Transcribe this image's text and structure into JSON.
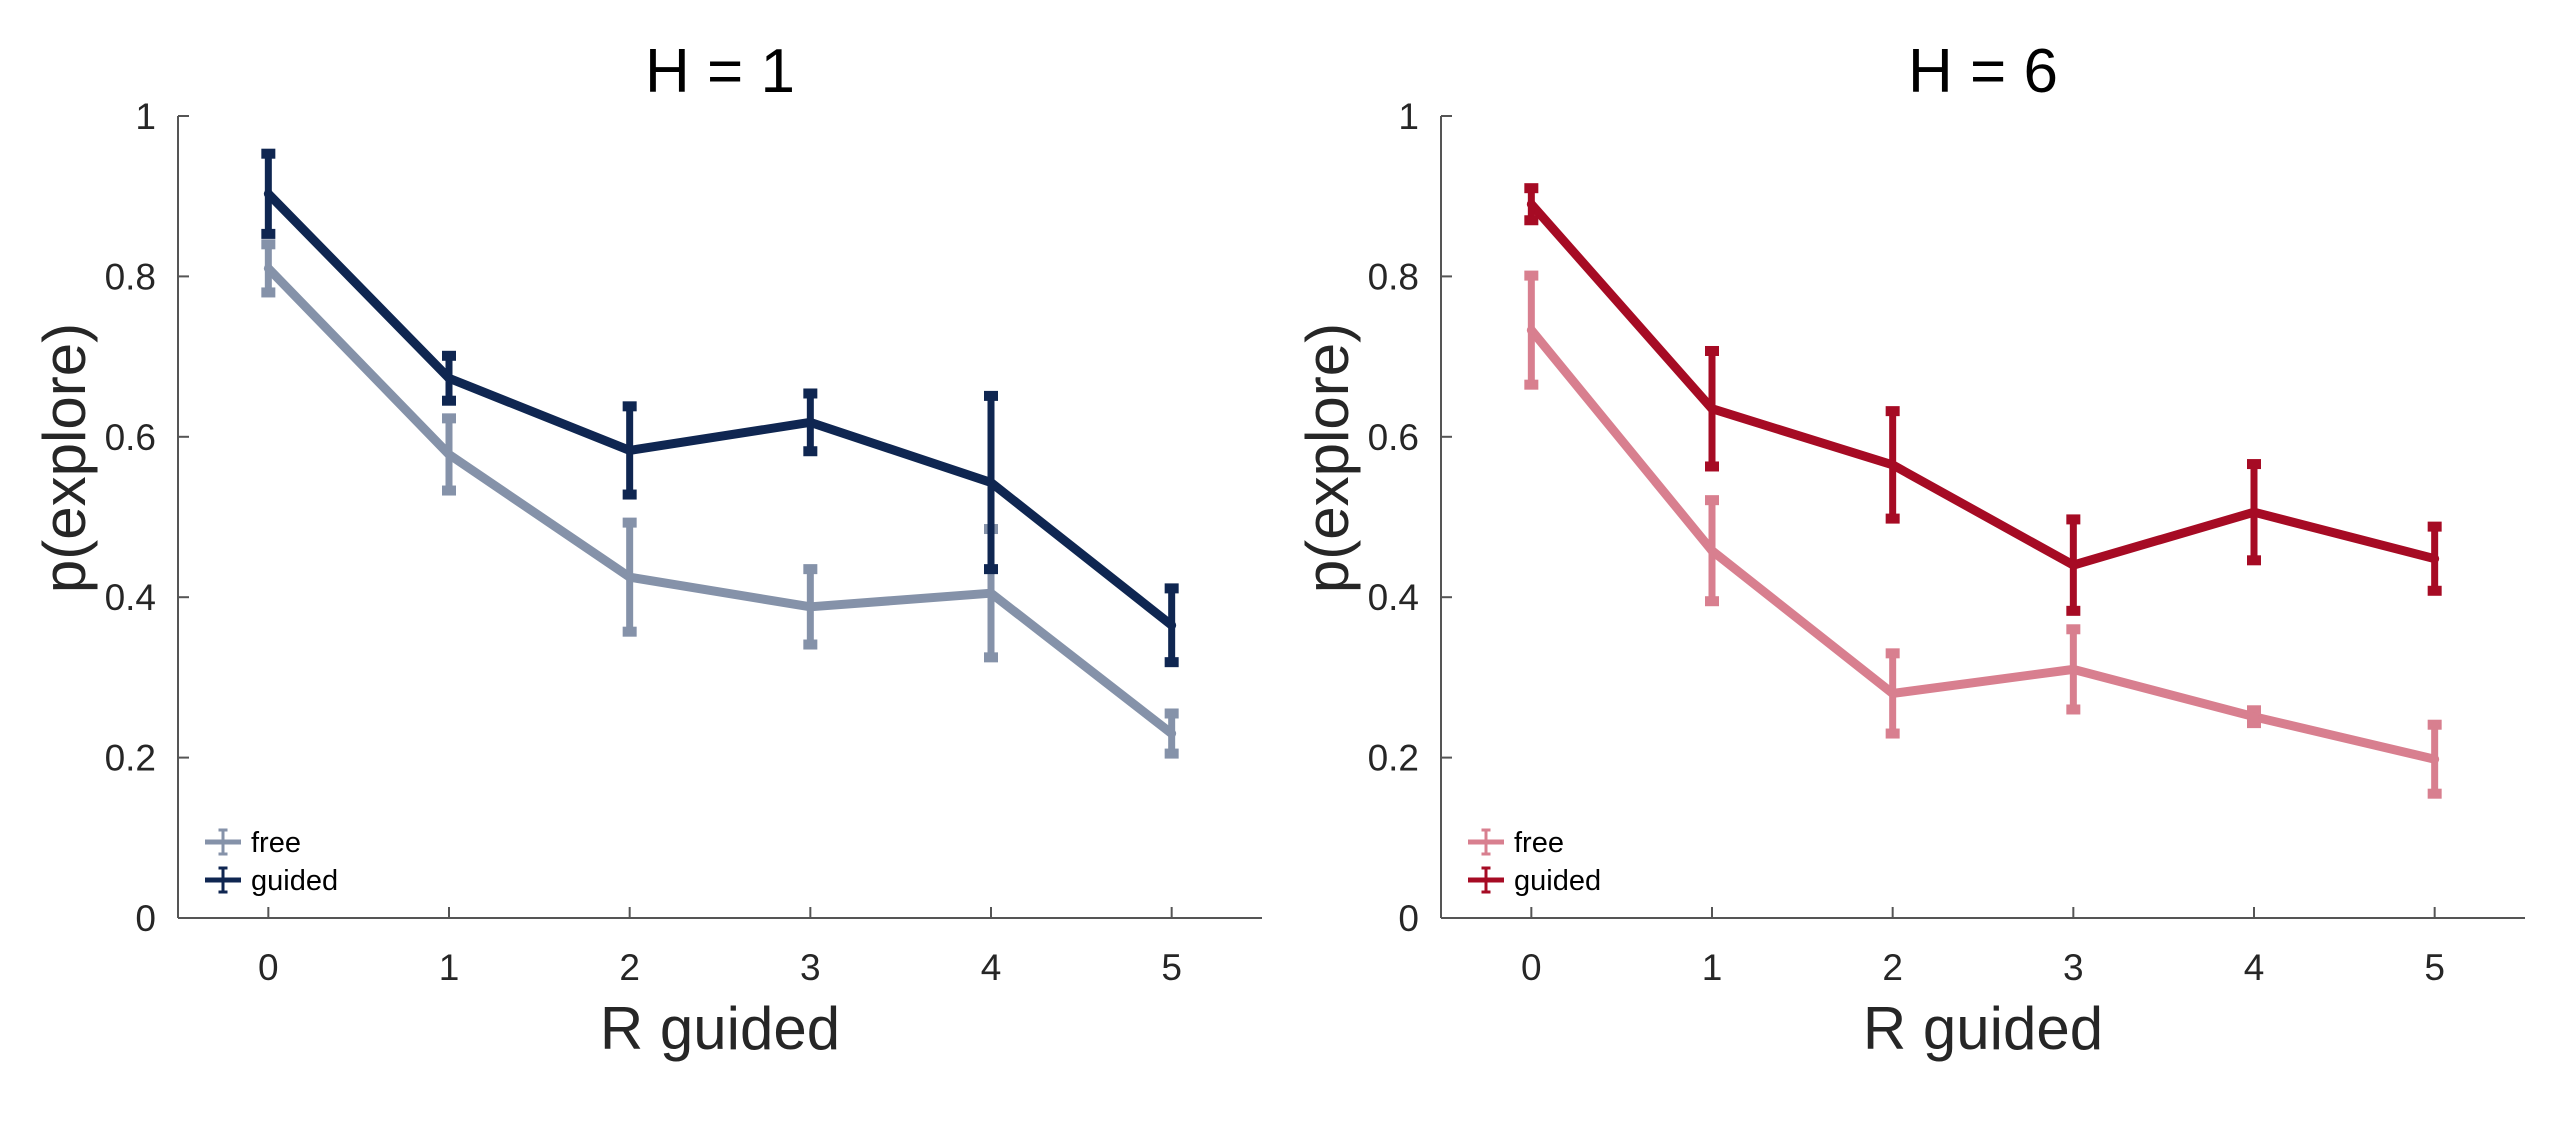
{
  "chart_data": [
    {
      "type": "line",
      "title": "H = 1",
      "xlabel": "R guided",
      "ylabel": "p(explore)",
      "x": [
        0,
        1,
        2,
        3,
        4,
        5
      ],
      "xlim": [
        -0.5,
        5.5
      ],
      "ylim": [
        0,
        1
      ],
      "xticks": [
        "0",
        "1",
        "2",
        "3",
        "4",
        "5"
      ],
      "yticks": [
        "0",
        "0.2",
        "0.4",
        "0.6",
        "0.8",
        "1"
      ],
      "grid": false,
      "legend_position": "bottom-left",
      "series": [
        {
          "name": "free",
          "color": "#8592a9",
          "values": [
            0.81,
            0.578,
            0.425,
            0.388,
            0.405,
            0.23
          ],
          "errors": [
            0.03,
            0.045,
            0.068,
            0.047,
            0.08,
            0.025
          ]
        },
        {
          "name": "guided",
          "color": "#0f2651",
          "values": [
            0.903,
            0.673,
            0.583,
            0.618,
            0.543,
            0.365
          ],
          "errors": [
            0.05,
            0.028,
            0.055,
            0.036,
            0.108,
            0.046
          ]
        }
      ]
    },
    {
      "type": "line",
      "title": "H = 6",
      "xlabel": "R guided",
      "ylabel": "p(explore)",
      "x": [
        0,
        1,
        2,
        3,
        4,
        5
      ],
      "xlim": [
        -0.5,
        5.5
      ],
      "ylim": [
        0,
        1
      ],
      "xticks": [
        "0",
        "1",
        "2",
        "3",
        "4",
        "5"
      ],
      "yticks": [
        "0",
        "0.2",
        "0.4",
        "0.6",
        "0.8",
        "1"
      ],
      "grid": false,
      "legend_position": "bottom-left",
      "series": [
        {
          "name": "free",
          "color": "#d87f8f",
          "values": [
            0.733,
            0.458,
            0.28,
            0.31,
            0.251,
            0.198
          ],
          "errors": [
            0.068,
            0.063,
            0.05,
            0.05,
            0.008,
            0.043
          ]
        },
        {
          "name": "guided",
          "color": "#a60b24",
          "values": [
            0.89,
            0.635,
            0.565,
            0.44,
            0.506,
            0.448
          ],
          "errors": [
            0.02,
            0.072,
            0.067,
            0.057,
            0.06,
            0.04
          ]
        }
      ]
    }
  ]
}
